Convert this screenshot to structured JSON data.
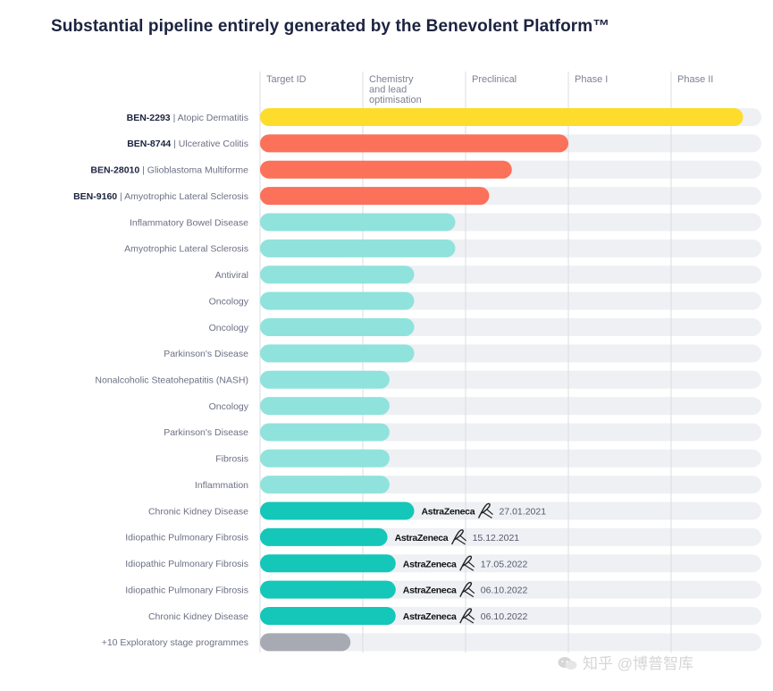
{
  "title": "Substantial pipeline entirely generated by the Benevolent Platform™",
  "watermark": "知乎 @博普智库",
  "colors": {
    "track": "#eef0f4",
    "gridline": "#d9dce3",
    "lead": "#fddc2c",
    "coral": "#fb7159",
    "light_teal": "#8fe3dc",
    "teal": "#14c7b8",
    "grey": "#a7aab2"
  },
  "chart_data": {
    "type": "bar",
    "orientation": "horizontal",
    "title": "Substantial pipeline entirely generated by the Benevolent Platform™",
    "stages": [
      [
        "Target ID"
      ],
      [
        "Chemistry",
        "and lead",
        "optimisation"
      ],
      [
        "Preclinical"
      ],
      [
        "Phase I"
      ],
      [
        "Phase II"
      ]
    ],
    "stage_range": [
      0,
      5
    ],
    "rows": [
      {
        "code": "BEN-2293",
        "indication": "Atopic Dermatitis",
        "progress": 4.7,
        "color": "lead"
      },
      {
        "code": "BEN-8744",
        "indication": "Ulcerative Colitis",
        "progress": 3.0,
        "color": "coral"
      },
      {
        "code": "BEN-28010",
        "indication": "Glioblastoma Multiforme",
        "progress": 2.45,
        "color": "coral"
      },
      {
        "code": "BEN-9160",
        "indication": "Amyotrophic Lateral Sclerosis",
        "progress": 2.23,
        "color": "coral"
      },
      {
        "code": "",
        "indication": "Inflammatory Bowel Disease",
        "progress": 1.9,
        "color": "light_teal"
      },
      {
        "code": "",
        "indication": "Amyotrophic Lateral Sclerosis",
        "progress": 1.9,
        "color": "light_teal"
      },
      {
        "code": "",
        "indication": "Antiviral",
        "progress": 1.5,
        "color": "light_teal"
      },
      {
        "code": "",
        "indication": "Oncology",
        "progress": 1.5,
        "color": "light_teal"
      },
      {
        "code": "",
        "indication": "Oncology",
        "progress": 1.5,
        "color": "light_teal"
      },
      {
        "code": "",
        "indication": "Parkinson's Disease",
        "progress": 1.5,
        "color": "light_teal"
      },
      {
        "code": "",
        "indication": "Nonalcoholic Steatohepatitis (NASH)",
        "progress": 1.26,
        "color": "light_teal"
      },
      {
        "code": "",
        "indication": "Oncology",
        "progress": 1.26,
        "color": "light_teal"
      },
      {
        "code": "",
        "indication": "Parkinson's Disease",
        "progress": 1.26,
        "color": "light_teal"
      },
      {
        "code": "",
        "indication": "Fibrosis",
        "progress": 1.26,
        "color": "light_teal"
      },
      {
        "code": "",
        "indication": "Inflammation",
        "progress": 1.26,
        "color": "light_teal"
      },
      {
        "code": "",
        "indication": "Chronic Kidney Disease",
        "progress": 1.5,
        "color": "teal",
        "partner": "AstraZeneca",
        "date": "27.01.2021"
      },
      {
        "code": "",
        "indication": "Idiopathic Pulmonary Fibrosis",
        "progress": 1.24,
        "color": "teal",
        "partner": "AstraZeneca",
        "date": "15.12.2021"
      },
      {
        "code": "",
        "indication": "Idiopathic Pulmonary Fibrosis",
        "progress": 1.32,
        "color": "teal",
        "partner": "AstraZeneca",
        "date": "17.05.2022"
      },
      {
        "code": "",
        "indication": "Idiopathic Pulmonary Fibrosis",
        "progress": 1.32,
        "color": "teal",
        "partner": "AstraZeneca",
        "date": "06.10.2022"
      },
      {
        "code": "",
        "indication": "Chronic Kidney Disease",
        "progress": 1.32,
        "color": "teal",
        "partner": "AstraZeneca",
        "date": "06.10.2022"
      },
      {
        "code": "",
        "indication": "+10 Exploratory stage programmes",
        "progress": 0.88,
        "color": "grey"
      }
    ]
  }
}
